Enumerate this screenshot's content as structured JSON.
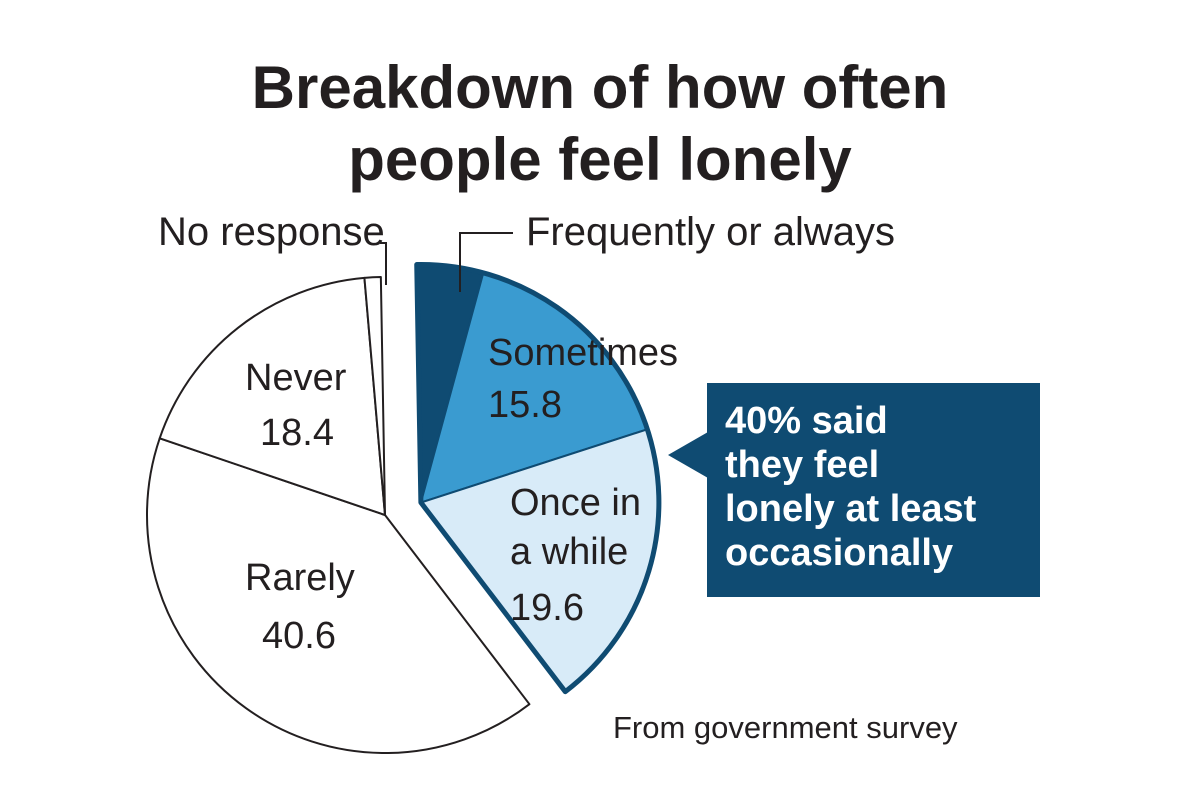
{
  "chart_data": {
    "type": "pie",
    "title": "Breakdown of how often people feel lonely",
    "title_lines": [
      "Breakdown of how often",
      "people feel lonely"
    ],
    "slices": [
      {
        "key": "frequently",
        "label": "Frequently or always",
        "value": 4.5,
        "value_text": "",
        "color": "#0f4b72",
        "exploded": true
      },
      {
        "key": "sometimes",
        "label": "Sometimes",
        "value": 15.8,
        "value_text": "15.8",
        "color": "#3a9bd0",
        "exploded": true
      },
      {
        "key": "once",
        "label": "Once in a while",
        "value": 19.6,
        "value_text": "19.6",
        "color": "#d8ebf8",
        "exploded": true
      },
      {
        "key": "rarely",
        "label": "Rarely",
        "value": 40.6,
        "value_text": "40.6",
        "color": "#ffffff",
        "exploded": false
      },
      {
        "key": "never",
        "label": "Never",
        "value": 18.4,
        "value_text": "18.4",
        "color": "#ffffff",
        "exploded": false
      },
      {
        "key": "noresponse",
        "label": "No response",
        "value": 1.1,
        "value_text": "",
        "color": "#ffffff",
        "exploded": false
      }
    ],
    "callout": {
      "lines": [
        "40% said",
        "they feel",
        "lonely at least",
        "occasionally"
      ],
      "color": "#0f4b72"
    },
    "source": "From government survey"
  },
  "labels": {
    "sometimes": "Sometimes",
    "once_line1": "Once in",
    "once_line2": "a while",
    "rarely": "Rarely",
    "never": "Never"
  }
}
